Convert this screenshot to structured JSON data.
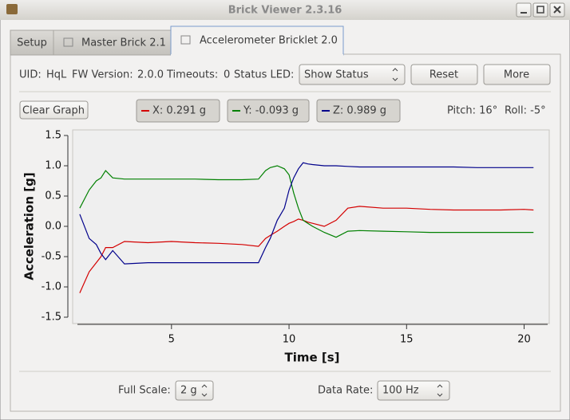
{
  "window": {
    "title": "Brick Viewer 2.3.16"
  },
  "tabs": [
    "Setup",
    "Master Brick 2.1",
    "Accelerometer Bricklet 2.0"
  ],
  "info": {
    "uid_label": "UID:",
    "uid": "HqL",
    "fw_label": "FW Version:",
    "fw": "2.0.0",
    "timeouts_label": "Timeouts:",
    "timeouts": "0",
    "led_label": "Status LED:",
    "led_select": "Show Status",
    "reset": "Reset",
    "more": "More"
  },
  "controls": {
    "clear": "Clear Graph",
    "pitch": "Pitch: 16°",
    "roll": "Roll: -5°"
  },
  "footer": {
    "scale_label": "Full Scale:",
    "scale": "2 g",
    "rate_label": "Data Rate:",
    "rate": "100 Hz"
  },
  "chart_data": {
    "type": "line",
    "x_label": "Time [s]",
    "y_label": "Acceleration [g]",
    "x": [
      1.1,
      1.5,
      1.8,
      2.0,
      2.2,
      2.5,
      3.0,
      4,
      5,
      6,
      7,
      8,
      8.7,
      9.0,
      9.2,
      9.5,
      9.8,
      10.0,
      10.2,
      10.4,
      10.6,
      10.8,
      11.0,
      11.5,
      12,
      12.5,
      13,
      14,
      15,
      16,
      17,
      18,
      19,
      20,
      20.4
    ],
    "series": [
      {
        "name": "X: 0.291 g",
        "color": "#d40000",
        "values": [
          -1.1,
          -0.75,
          -0.6,
          -0.5,
          -0.35,
          -0.35,
          -0.25,
          -0.27,
          -0.25,
          -0.27,
          -0.28,
          -0.3,
          -0.33,
          -0.2,
          -0.15,
          -0.08,
          0.0,
          0.05,
          0.08,
          0.12,
          0.1,
          0.07,
          0.05,
          0.0,
          0.1,
          0.3,
          0.33,
          0.3,
          0.3,
          0.28,
          0.27,
          0.27,
          0.27,
          0.28,
          0.27
        ]
      },
      {
        "name": "Y: -0.093 g",
        "color": "#008000",
        "values": [
          0.3,
          0.6,
          0.75,
          0.8,
          0.92,
          0.8,
          0.78,
          0.78,
          0.78,
          0.78,
          0.77,
          0.77,
          0.78,
          0.92,
          0.97,
          1.0,
          0.95,
          0.85,
          0.55,
          0.3,
          0.1,
          0.05,
          0.0,
          -0.1,
          -0.18,
          -0.08,
          -0.07,
          -0.08,
          -0.09,
          -0.1,
          -0.1,
          -0.1,
          -0.1,
          -0.1,
          -0.1
        ]
      },
      {
        "name": "Z: 0.989 g",
        "color": "#00008b",
        "values": [
          0.2,
          -0.2,
          -0.3,
          -0.45,
          -0.55,
          -0.4,
          -0.62,
          -0.6,
          -0.6,
          -0.6,
          -0.6,
          -0.6,
          -0.6,
          -0.35,
          -0.2,
          0.1,
          0.3,
          0.6,
          0.8,
          0.95,
          1.05,
          1.03,
          1.02,
          1.0,
          1.0,
          0.99,
          0.98,
          0.98,
          0.98,
          0.98,
          0.98,
          0.97,
          0.97,
          0.97,
          0.97
        ]
      }
    ],
    "xlim": [
      1,
      21
    ],
    "xticks": [
      5,
      10,
      15,
      20
    ],
    "ylim": [
      -1.5,
      1.5
    ],
    "yticks": [
      -1.5,
      {
        "value": -1,
        "label": "-1.0"
      },
      -0.5,
      {
        "value": 0,
        "label": "0.0"
      },
      0.5,
      {
        "value": 1,
        "label": "1.0"
      },
      1.5
    ]
  }
}
